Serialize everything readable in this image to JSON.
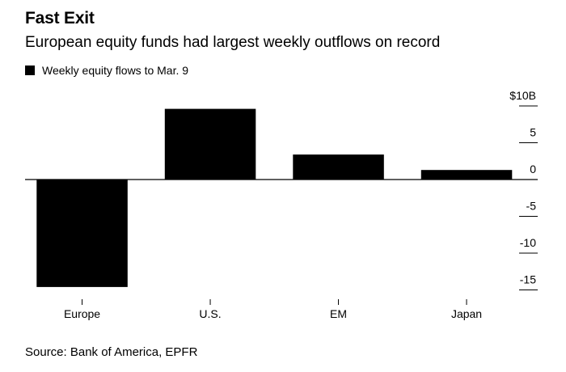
{
  "title": "Fast Exit",
  "subtitle": "European equity funds had largest weekly outflows on record",
  "source": "Source: Bank of America, EPFR",
  "legend": {
    "label": "Weekly equity flows to Mar. 9",
    "color": "#000000"
  },
  "chart_data": {
    "type": "bar",
    "categories": [
      "Europe",
      "U.S.",
      "EM",
      "Japan"
    ],
    "series": [
      {
        "name": "Weekly equity flows to Mar. 9",
        "values": [
          -14.6,
          9.6,
          3.4,
          1.3
        ]
      }
    ],
    "y_ticks": [
      {
        "value": 10,
        "label": "$10B"
      },
      {
        "value": 5,
        "label": "5"
      },
      {
        "value": 0,
        "label": "0"
      },
      {
        "value": -5,
        "label": "-5"
      },
      {
        "value": -10,
        "label": "-10"
      },
      {
        "value": -15,
        "label": "-15"
      }
    ],
    "ylim": [
      -16.5,
      11
    ],
    "axis_side": "right",
    "grid": false,
    "legend_position": "top-left",
    "bar_color": "#000000"
  }
}
